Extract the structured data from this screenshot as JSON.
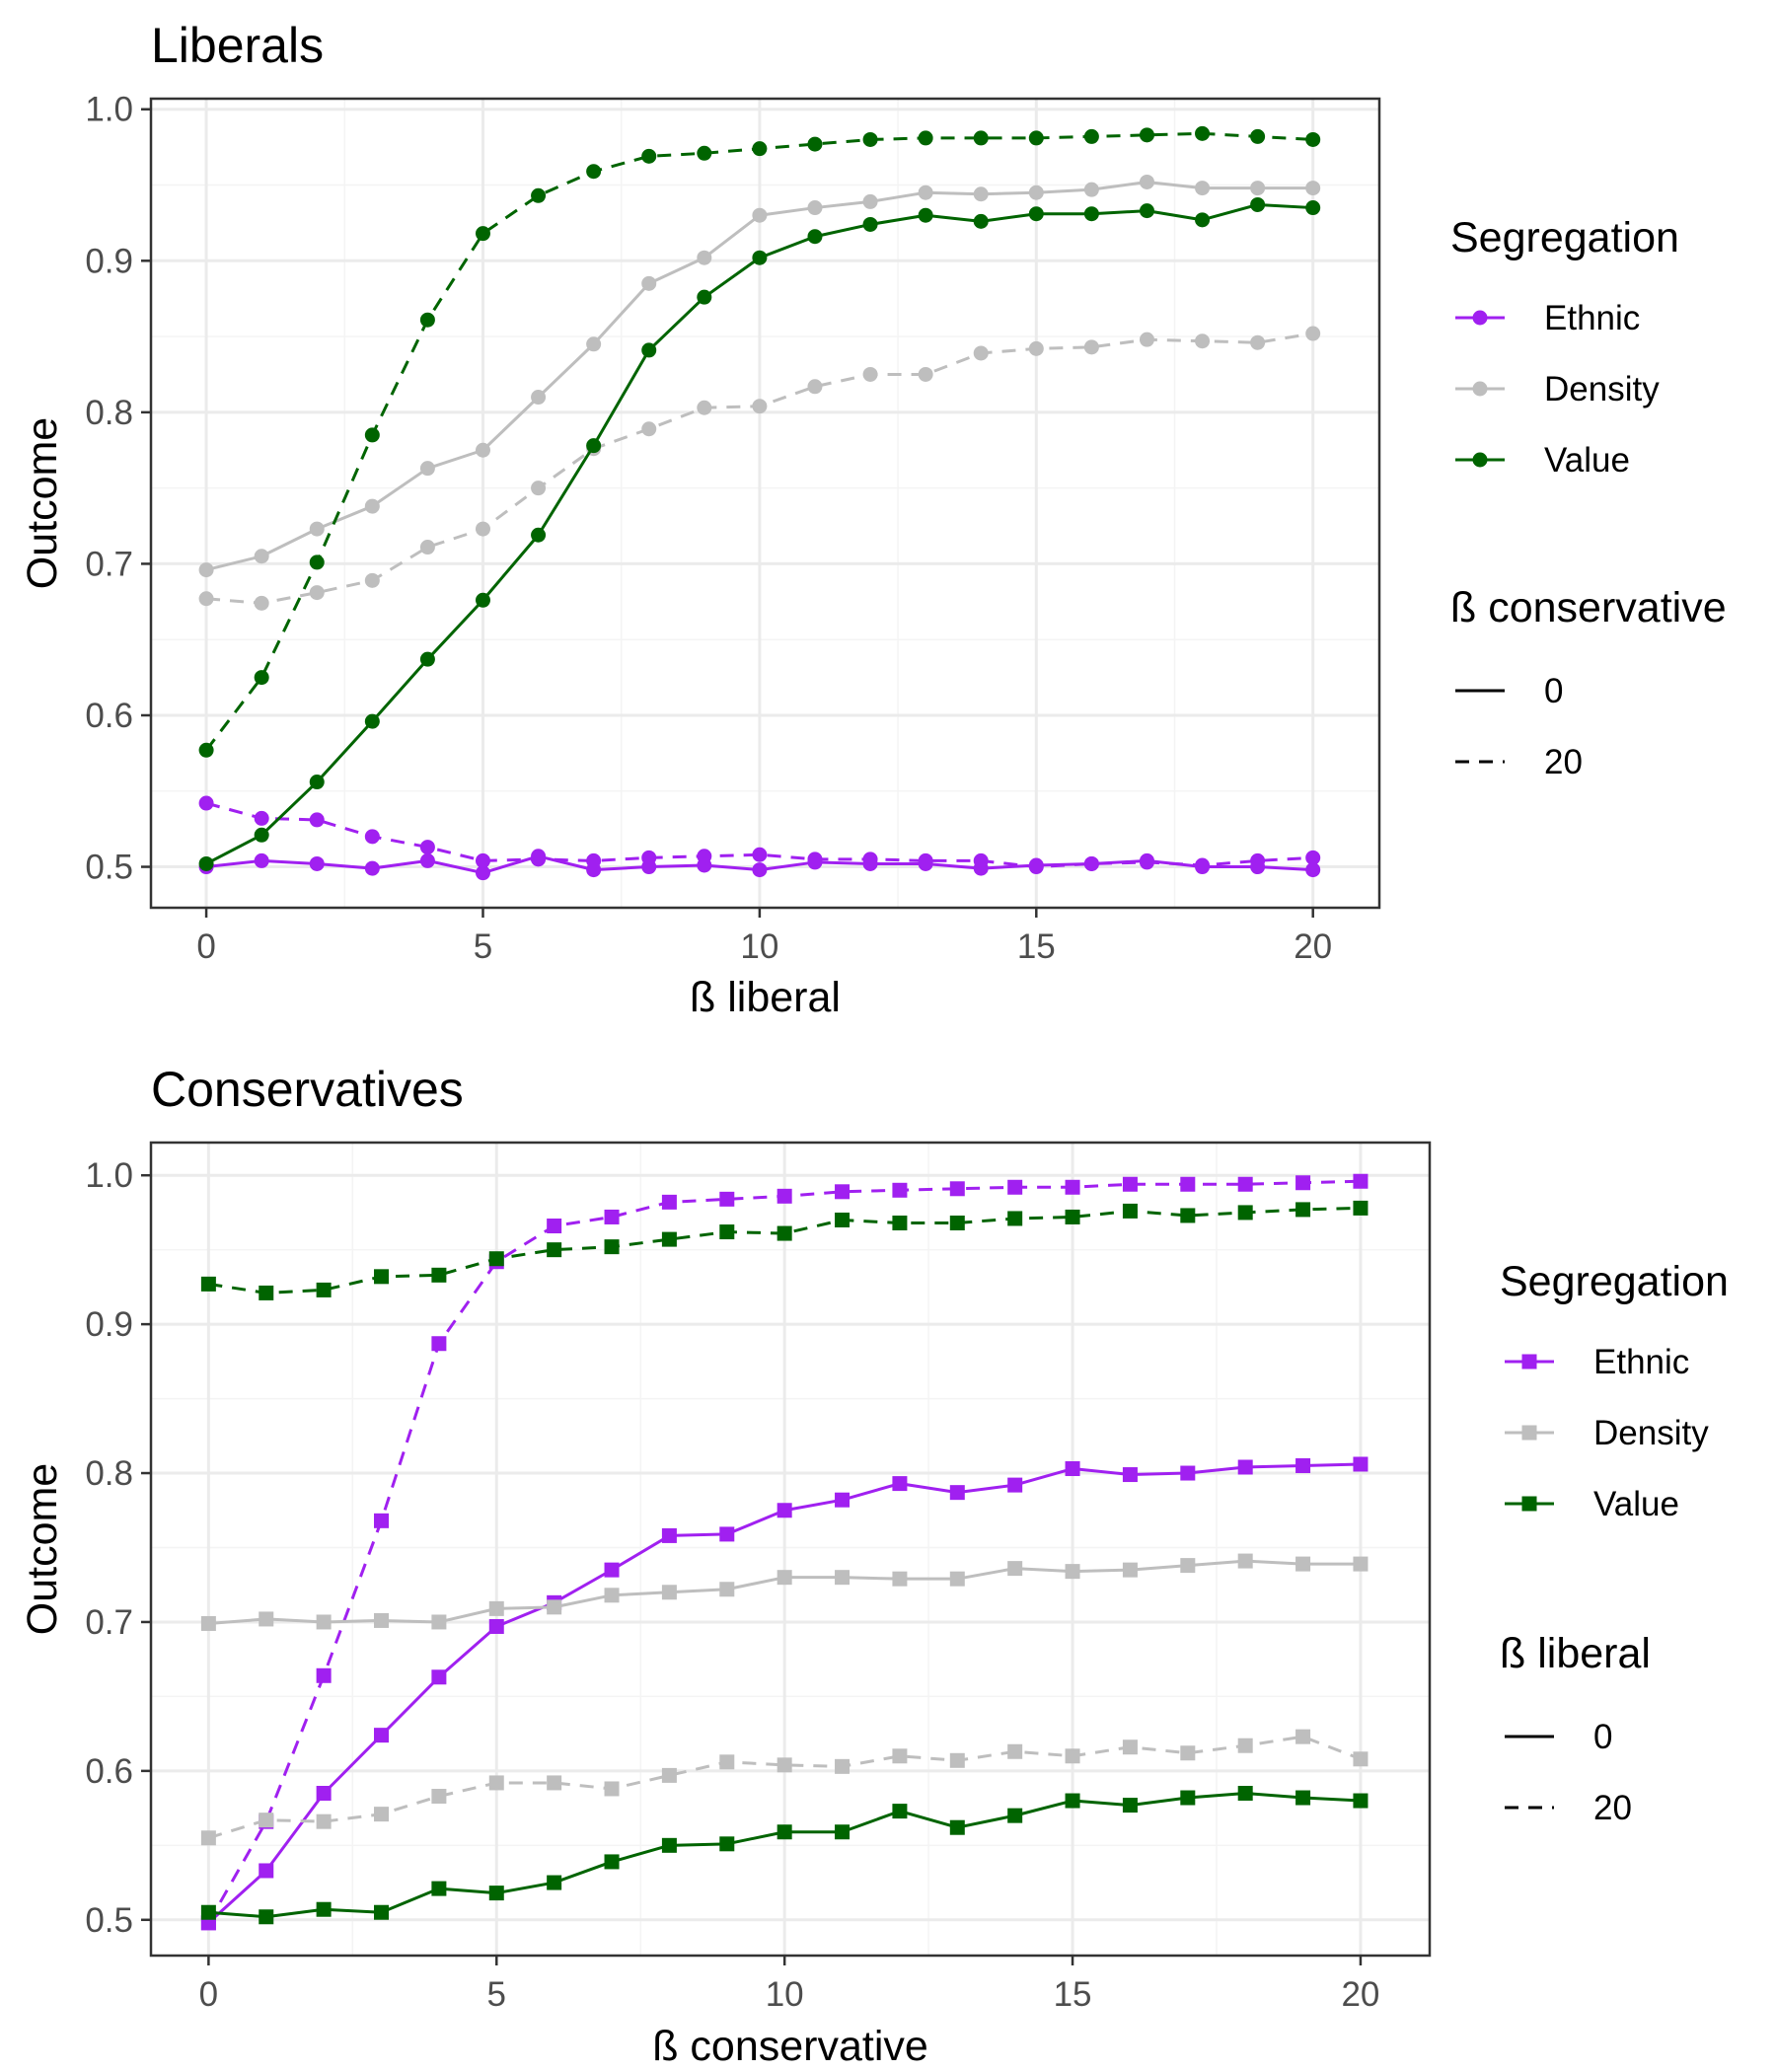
{
  "colors": {
    "Ethnic": "#a020f0",
    "Density": "#bebebe",
    "Value": "#006400",
    "panel_border": "#333333",
    "grid_major": "#ebebeb",
    "grid_minor": "#f4f4f4",
    "tick_text": "#4d4d4d"
  },
  "chart_data": [
    {
      "type": "line",
      "title": "Liberals",
      "xlabel": "ß liberal",
      "ylabel": "Outcome",
      "xlim": [
        -1,
        21.2
      ],
      "ylim": [
        0.473,
        1.007
      ],
      "xticks": [
        0,
        5,
        10,
        15,
        20
      ],
      "yticks": [
        0.5,
        0.6,
        0.7,
        0.8,
        0.9,
        1.0
      ],
      "ytick_labels": [
        "0.5",
        "0.6",
        "0.7",
        "0.8",
        "0.9",
        "1.0"
      ],
      "grid": true,
      "marker": "circle",
      "legend_position": "right",
      "legend": {
        "color_title": "Segregation",
        "color_entries": [
          "Ethnic",
          "Density",
          "Value"
        ],
        "linetype_title": "ß conservative",
        "linetype_entries": [
          "0",
          "20"
        ]
      },
      "x": [
        0,
        1,
        2,
        3,
        4,
        5,
        6,
        7,
        8,
        9,
        10,
        11,
        12,
        13,
        14,
        15,
        16,
        17,
        18,
        19,
        20
      ],
      "series": [
        {
          "segregation": "Ethnic",
          "linetype": "0",
          "values": [
            0.5,
            0.504,
            0.502,
            0.499,
            0.504,
            0.496,
            0.507,
            0.498,
            0.5,
            0.501,
            0.498,
            0.503,
            0.502,
            0.502,
            0.499,
            0.501,
            0.502,
            0.504,
            0.5,
            0.5,
            0.498
          ]
        },
        {
          "segregation": "Ethnic",
          "linetype": "20",
          "values": [
            0.542,
            0.532,
            0.531,
            0.52,
            0.513,
            0.504,
            0.505,
            0.504,
            0.506,
            0.507,
            0.508,
            0.505,
            0.505,
            0.504,
            0.504,
            0.5,
            0.502,
            0.503,
            0.501,
            0.504,
            0.506
          ]
        },
        {
          "segregation": "Density",
          "linetype": "0",
          "values": [
            0.696,
            0.705,
            0.723,
            0.738,
            0.763,
            0.775,
            0.81,
            0.845,
            0.885,
            0.902,
            0.93,
            0.935,
            0.939,
            0.945,
            0.944,
            0.945,
            0.947,
            0.952,
            0.948,
            0.948,
            0.948
          ]
        },
        {
          "segregation": "Density",
          "linetype": "20",
          "values": [
            0.677,
            0.674,
            0.681,
            0.689,
            0.711,
            0.723,
            0.75,
            0.776,
            0.789,
            0.803,
            0.804,
            0.817,
            0.825,
            0.825,
            0.839,
            0.842,
            0.843,
            0.848,
            0.847,
            0.846,
            0.852
          ]
        },
        {
          "segregation": "Value",
          "linetype": "0",
          "values": [
            0.502,
            0.521,
            0.556,
            0.596,
            0.637,
            0.676,
            0.719,
            0.778,
            0.841,
            0.876,
            0.902,
            0.916,
            0.924,
            0.93,
            0.926,
            0.931,
            0.931,
            0.933,
            0.927,
            0.937,
            0.935
          ]
        },
        {
          "segregation": "Value",
          "linetype": "20",
          "values": [
            0.577,
            0.625,
            0.701,
            0.785,
            0.861,
            0.918,
            0.943,
            0.959,
            0.969,
            0.971,
            0.974,
            0.977,
            0.98,
            0.981,
            0.981,
            0.981,
            0.982,
            0.983,
            0.984,
            0.982,
            0.98
          ]
        }
      ]
    },
    {
      "type": "line",
      "title": "Conservatives",
      "xlabel": "ß conservative",
      "ylabel": "Outcome",
      "xlim": [
        -1,
        21.2
      ],
      "ylim": [
        0.476,
        1.022
      ],
      "xticks": [
        0,
        5,
        10,
        15,
        20
      ],
      "yticks": [
        0.5,
        0.6,
        0.7,
        0.8,
        0.9,
        1.0
      ],
      "ytick_labels": [
        "0.5",
        "0.6",
        "0.7",
        "0.8",
        "0.9",
        "1.0"
      ],
      "grid": true,
      "marker": "square",
      "legend_position": "right",
      "legend": {
        "color_title": "Segregation",
        "color_entries": [
          "Ethnic",
          "Density",
          "Value"
        ],
        "linetype_title": "ß liberal",
        "linetype_entries": [
          "0",
          "20"
        ]
      },
      "x": [
        0,
        1,
        2,
        3,
        4,
        5,
        6,
        7,
        8,
        9,
        10,
        11,
        12,
        13,
        14,
        15,
        16,
        17,
        18,
        19,
        20
      ],
      "series": [
        {
          "segregation": "Ethnic",
          "linetype": "0",
          "values": [
            0.498,
            0.533,
            0.585,
            0.624,
            0.663,
            0.697,
            0.713,
            0.735,
            0.758,
            0.759,
            0.775,
            0.782,
            0.793,
            0.787,
            0.792,
            0.803,
            0.799,
            0.8,
            0.804,
            0.805,
            0.806
          ]
        },
        {
          "segregation": "Ethnic",
          "linetype": "20",
          "values": [
            0.498,
            0.566,
            0.664,
            0.768,
            0.887,
            0.942,
            0.966,
            0.972,
            0.982,
            0.984,
            0.986,
            0.989,
            0.99,
            0.991,
            0.992,
            0.992,
            0.994,
            0.994,
            0.994,
            0.995,
            0.996
          ]
        },
        {
          "segregation": "Density",
          "linetype": "0",
          "values": [
            0.699,
            0.702,
            0.7,
            0.701,
            0.7,
            0.709,
            0.71,
            0.718,
            0.72,
            0.722,
            0.73,
            0.73,
            0.729,
            0.729,
            0.736,
            0.734,
            0.735,
            0.738,
            0.741,
            0.739,
            0.739
          ]
        },
        {
          "segregation": "Density",
          "linetype": "20",
          "values": [
            0.555,
            0.567,
            0.566,
            0.571,
            0.583,
            0.592,
            0.592,
            0.588,
            0.597,
            0.606,
            0.604,
            0.603,
            0.61,
            0.607,
            0.613,
            0.61,
            0.616,
            0.612,
            0.617,
            0.623,
            0.608
          ]
        },
        {
          "segregation": "Value",
          "linetype": "0",
          "values": [
            0.505,
            0.502,
            0.507,
            0.505,
            0.521,
            0.518,
            0.525,
            0.539,
            0.55,
            0.551,
            0.559,
            0.559,
            0.573,
            0.562,
            0.57,
            0.58,
            0.577,
            0.582,
            0.585,
            0.582,
            0.58
          ]
        },
        {
          "segregation": "Value",
          "linetype": "20",
          "values": [
            0.927,
            0.921,
            0.923,
            0.932,
            0.933,
            0.944,
            0.95,
            0.952,
            0.957,
            0.962,
            0.961,
            0.97,
            0.968,
            0.968,
            0.971,
            0.972,
            0.976,
            0.973,
            0.975,
            0.977,
            0.978
          ]
        }
      ]
    }
  ]
}
